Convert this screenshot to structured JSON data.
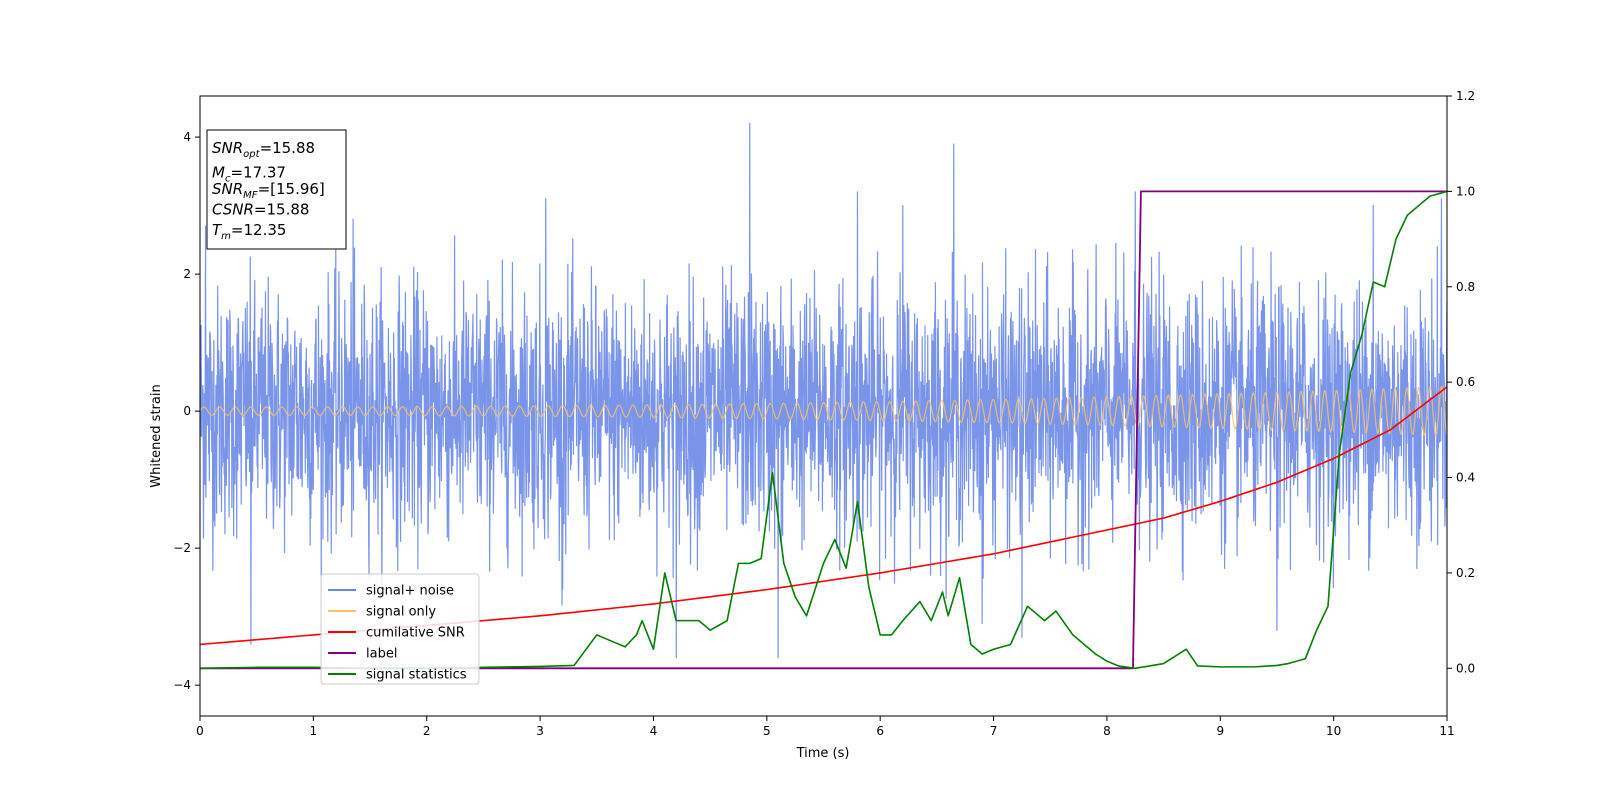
{
  "chart_data": {
    "type": "line",
    "xlabel": "Time (s)",
    "ylabel": "Whitened strain",
    "xlim": [
      0,
      11
    ],
    "ylim_left": [
      -4.45,
      4.6
    ],
    "ylim_right": [
      -0.1,
      1.2
    ],
    "x_ticks": [
      0,
      1,
      2,
      3,
      4,
      5,
      6,
      7,
      8,
      9,
      10,
      11
    ],
    "y_left_ticks": [
      -4,
      -2,
      0,
      2,
      4
    ],
    "y_right_ticks": [
      0.0,
      0.2,
      0.4,
      0.6,
      0.8,
      1.0,
      1.2
    ],
    "annotation": {
      "lines": [
        {
          "base": "SNR",
          "sub": "opt",
          "value": "=15.88"
        },
        {
          "base": "M",
          "sub": "c",
          "value": "=17.37"
        },
        {
          "base": "SNR",
          "sub": "MF",
          "value": "=[15.96]"
        },
        {
          "base": "CSNR",
          "sub": "",
          "value": "=15.88"
        },
        {
          "base": "T",
          "sub": "m",
          "value": "=12.35"
        }
      ]
    },
    "legend": {
      "placement": "lower-left",
      "entries": [
        {
          "label": "signal+ noise",
          "color": "#6a88e6"
        },
        {
          "label": "signal only",
          "color": "#f6c26b"
        },
        {
          "label": "cumilative SNR",
          "color": "#ff0000"
        },
        {
          "label": "label",
          "color": "#800080"
        },
        {
          "label": "signal statistics",
          "color": "#008000"
        }
      ]
    },
    "series": [
      {
        "name": "signal+ noise",
        "axis": "left",
        "color": "#6a88e6",
        "kind": "noise",
        "typical_amplitude": 1.25,
        "peak_values": [
          [
            0.05,
            2.7
          ],
          [
            0.45,
            -3.4
          ],
          [
            1.35,
            2.8
          ],
          [
            3.05,
            3.1
          ],
          [
            3.2,
            -2.6
          ],
          [
            4.2,
            -3.6
          ],
          [
            4.85,
            4.2
          ],
          [
            5.1,
            -3.6
          ],
          [
            5.8,
            3.2
          ],
          [
            6.2,
            3.0
          ],
          [
            6.65,
            3.9
          ],
          [
            6.9,
            -3.1
          ],
          [
            7.25,
            -3.3
          ],
          [
            8.25,
            3.2
          ],
          [
            9.5,
            -3.2
          ],
          [
            10.35,
            3.0
          ],
          [
            10.95,
            3.1
          ]
        ]
      },
      {
        "name": "signal only",
        "axis": "left",
        "color": "#f6c26b",
        "kind": "chirp",
        "amplitude_start": 0.06,
        "amplitude_end": 0.36
      },
      {
        "name": "cumilative SNR",
        "axis": "right",
        "color": "#ff0000",
        "x": [
          0,
          1,
          2,
          3,
          4,
          5,
          6,
          7,
          8,
          8.5,
          9,
          9.5,
          10,
          10.5,
          11
        ],
        "y": [
          0.05,
          0.07,
          0.09,
          0.11,
          0.135,
          0.165,
          0.2,
          0.24,
          0.29,
          0.315,
          0.35,
          0.39,
          0.44,
          0.5,
          0.59
        ]
      },
      {
        "name": "label",
        "axis": "right",
        "color": "#800080",
        "x": [
          0,
          8.23,
          8.3,
          11
        ],
        "y": [
          0,
          0,
          1,
          1
        ]
      },
      {
        "name": "signal statistics",
        "axis": "right",
        "color": "#008000",
        "x": [
          0,
          0.5,
          1,
          1.5,
          2,
          2.5,
          3,
          3.3,
          3.5,
          3.6,
          3.75,
          3.85,
          3.9,
          4.0,
          4.1,
          4.2,
          4.3,
          4.4,
          4.5,
          4.65,
          4.75,
          4.85,
          4.95,
          5.05,
          5.15,
          5.25,
          5.35,
          5.5,
          5.6,
          5.7,
          5.8,
          5.9,
          6.0,
          6.1,
          6.2,
          6.35,
          6.45,
          6.55,
          6.6,
          6.7,
          6.8,
          6.9,
          7.0,
          7.15,
          7.3,
          7.45,
          7.55,
          7.7,
          7.8,
          7.9,
          8.0,
          8.1,
          8.25,
          8.5,
          8.7,
          8.8,
          9.0,
          9.3,
          9.5,
          9.6,
          9.75,
          9.85,
          9.95,
          10.05,
          10.15,
          10.25,
          10.35,
          10.45,
          10.55,
          10.65,
          10.75,
          10.85,
          11
        ],
        "y": [
          0.0,
          0.002,
          0.002,
          0.0,
          0.0,
          0.002,
          0.004,
          0.006,
          0.07,
          0.06,
          0.045,
          0.07,
          0.1,
          0.04,
          0.2,
          0.1,
          0.1,
          0.1,
          0.08,
          0.1,
          0.22,
          0.22,
          0.23,
          0.41,
          0.22,
          0.15,
          0.11,
          0.22,
          0.27,
          0.21,
          0.35,
          0.17,
          0.07,
          0.07,
          0.1,
          0.14,
          0.1,
          0.16,
          0.11,
          0.19,
          0.05,
          0.03,
          0.04,
          0.05,
          0.13,
          0.1,
          0.12,
          0.07,
          0.05,
          0.03,
          0.015,
          0.005,
          0.0,
          0.01,
          0.04,
          0.005,
          0.003,
          0.003,
          0.006,
          0.01,
          0.02,
          0.08,
          0.13,
          0.45,
          0.62,
          0.7,
          0.81,
          0.8,
          0.9,
          0.95,
          0.97,
          0.99,
          1.0
        ]
      }
    ]
  }
}
